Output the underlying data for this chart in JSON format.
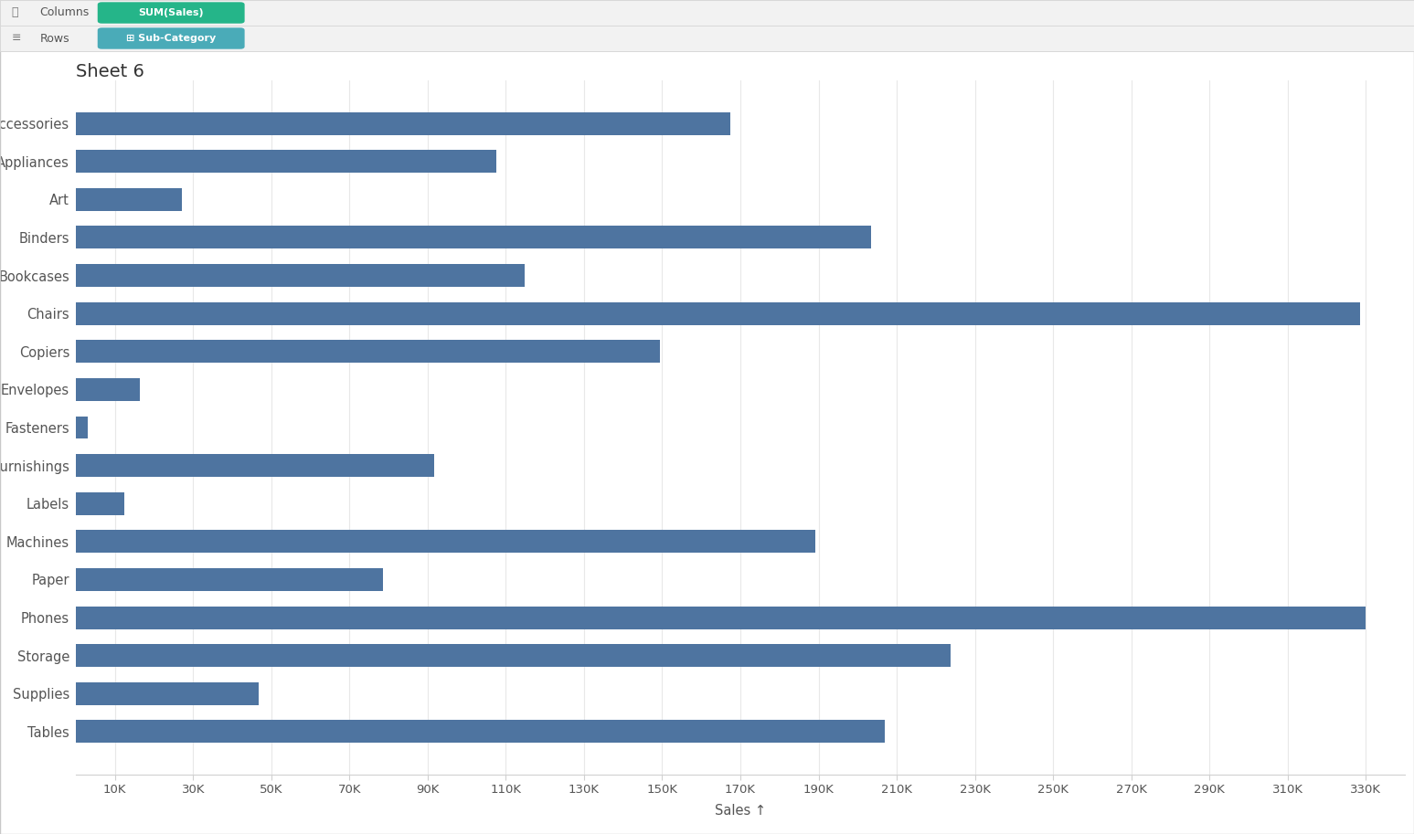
{
  "title": "Sheet 6",
  "categories": [
    "Accessories",
    "Appliances",
    "Art",
    "Binders",
    "Bookcases",
    "Chairs",
    "Copiers",
    "Envelopes",
    "Fasteners",
    "Furnishings",
    "Labels",
    "Machines",
    "Paper",
    "Phones",
    "Storage",
    "Supplies",
    "Tables"
  ],
  "values": [
    167380,
    107532,
    27119,
    203413,
    114880,
    328449,
    149528,
    16476,
    3024,
    91705,
    12486,
    189239,
    78479,
    330007,
    223844,
    46674,
    206966
  ],
  "bar_color": "#4e74a0",
  "fig_bg_color": "#ffffff",
  "plot_bg_color": "#ffffff",
  "header_bg_color": "#f2f2f2",
  "header_border_color": "#d8d8d8",
  "title_fontsize": 14,
  "label_fontsize": 10.5,
  "tick_fontsize": 9.5,
  "xlabel": "Sales ↑",
  "xlim": [
    0,
    340000
  ],
  "xticks": [
    10000,
    30000,
    50000,
    70000,
    90000,
    110000,
    130000,
    150000,
    170000,
    190000,
    210000,
    230000,
    250000,
    270000,
    290000,
    310000,
    330000
  ],
  "xtick_labels": [
    "10K",
    "30K",
    "50K",
    "70K",
    "90K",
    "110K",
    "130K",
    "150K",
    "170K",
    "190K",
    "210K",
    "230K",
    "250K",
    "270K",
    "290K",
    "310K",
    "330K"
  ],
  "columns_pill_color": "#25b589",
  "rows_pill_color": "#4aabb8",
  "sum_sales_text": "SUM(Sales)",
  "sub_category_text": "⊞ Sub-Category",
  "grid_color": "#e8e8e8",
  "spine_color": "#d0d0d0",
  "text_color": "#555555",
  "bar_height": 0.6
}
